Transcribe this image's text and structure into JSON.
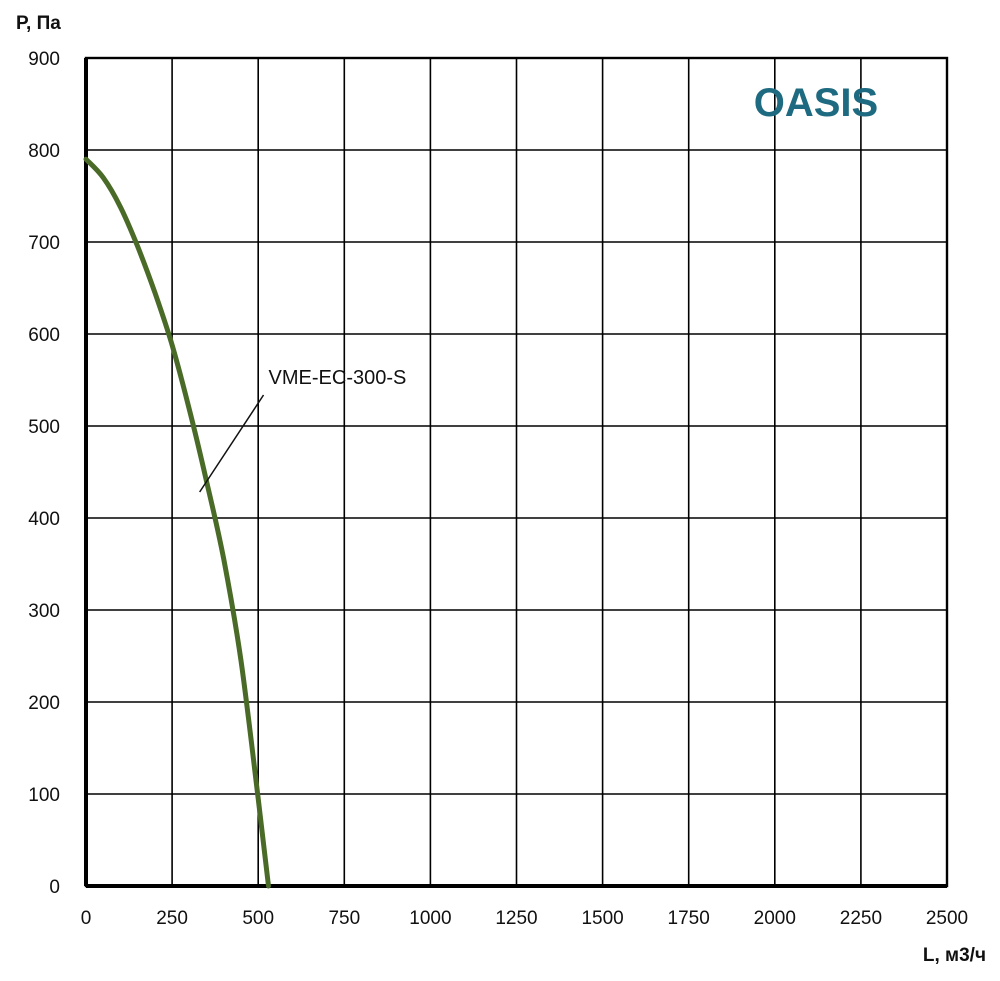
{
  "chart_data": {
    "type": "line",
    "title": "",
    "xlabel": "L, м3/ч",
    "ylabel": "Р, Па",
    "xlim": [
      0,
      2500
    ],
    "ylim": [
      0,
      900
    ],
    "x_ticks": [
      "0",
      "250",
      "500",
      "750",
      "1000",
      "1250",
      "1500",
      "1750",
      "2000",
      "2250",
      "2500"
    ],
    "y_ticks": [
      "0",
      "100",
      "200",
      "300",
      "400",
      "500",
      "600",
      "700",
      "800",
      "900"
    ],
    "grid": true,
    "series": [
      {
        "name": "VME-EC-300-S",
        "color": "#4a6b28",
        "x": [
          0,
          50,
          100,
          150,
          200,
          250,
          300,
          350,
          400,
          450,
          500,
          530
        ],
        "y": [
          790,
          770,
          738,
          695,
          645,
          588,
          518,
          440,
          355,
          245,
          95,
          0
        ]
      }
    ],
    "annotation": {
      "text": "VME-EC-300-S",
      "points_to": [
        330,
        450
      ],
      "label_at": [
        530,
        550
      ]
    },
    "logo": {
      "text": "OASIS",
      "color": "#1e6a80"
    }
  }
}
